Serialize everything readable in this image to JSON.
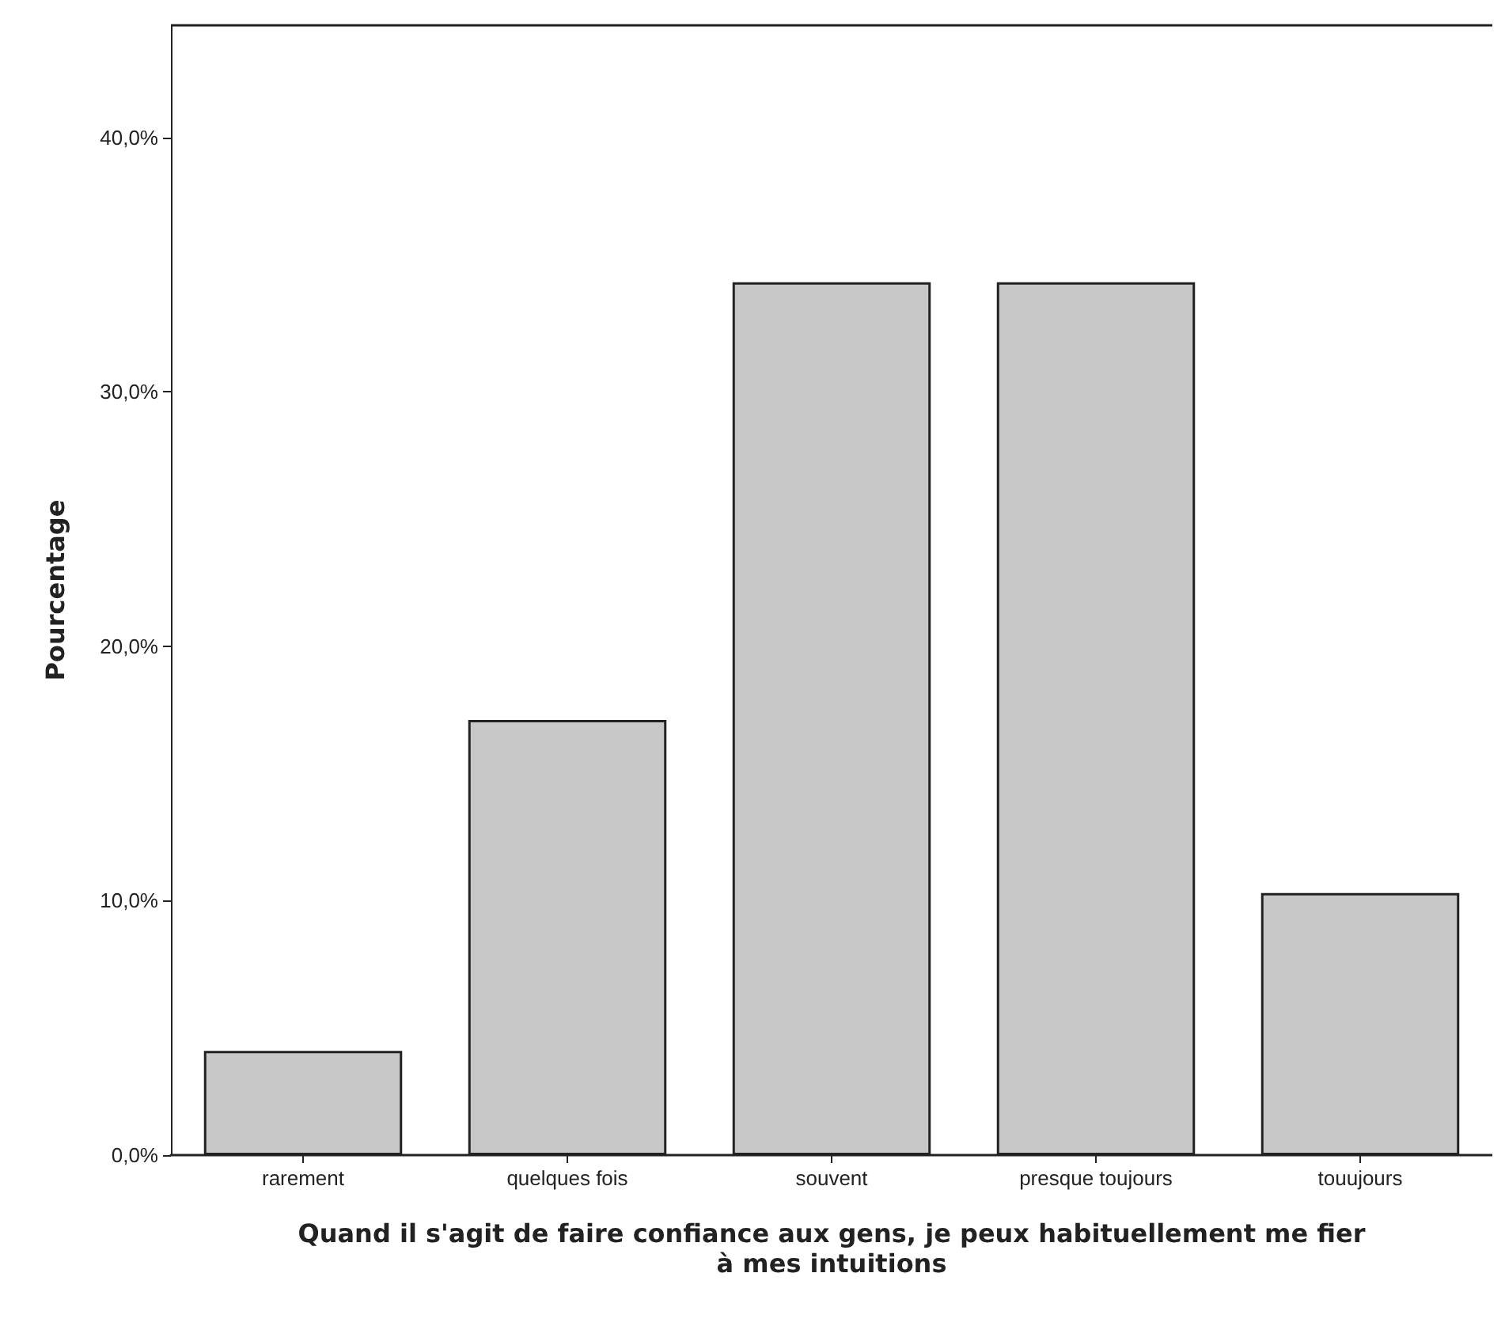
{
  "chart_data": {
    "type": "bar",
    "xlabel": "Quand il s'agit de faire confiance aux gens, je peux habituellement me fier\nà mes intuitions",
    "ylabel": "Pourcentage",
    "categories": [
      "rarement",
      "quelques fois",
      "souvent",
      "presque toujours",
      "touujours"
    ],
    "values": [
      4.1,
      17.1,
      34.3,
      34.3,
      10.3
    ],
    "color": "#c8c8c8",
    "ylim": [
      0,
      44.4
    ],
    "yticks": [
      {
        "value": 0,
        "label": "0,0%"
      },
      {
        "value": 10,
        "label": "10,0%"
      },
      {
        "value": 20,
        "label": "20,0%"
      },
      {
        "value": 30,
        "label": "30,0%"
      },
      {
        "value": 40,
        "label": "40,0%"
      }
    ],
    "grid": false
  }
}
